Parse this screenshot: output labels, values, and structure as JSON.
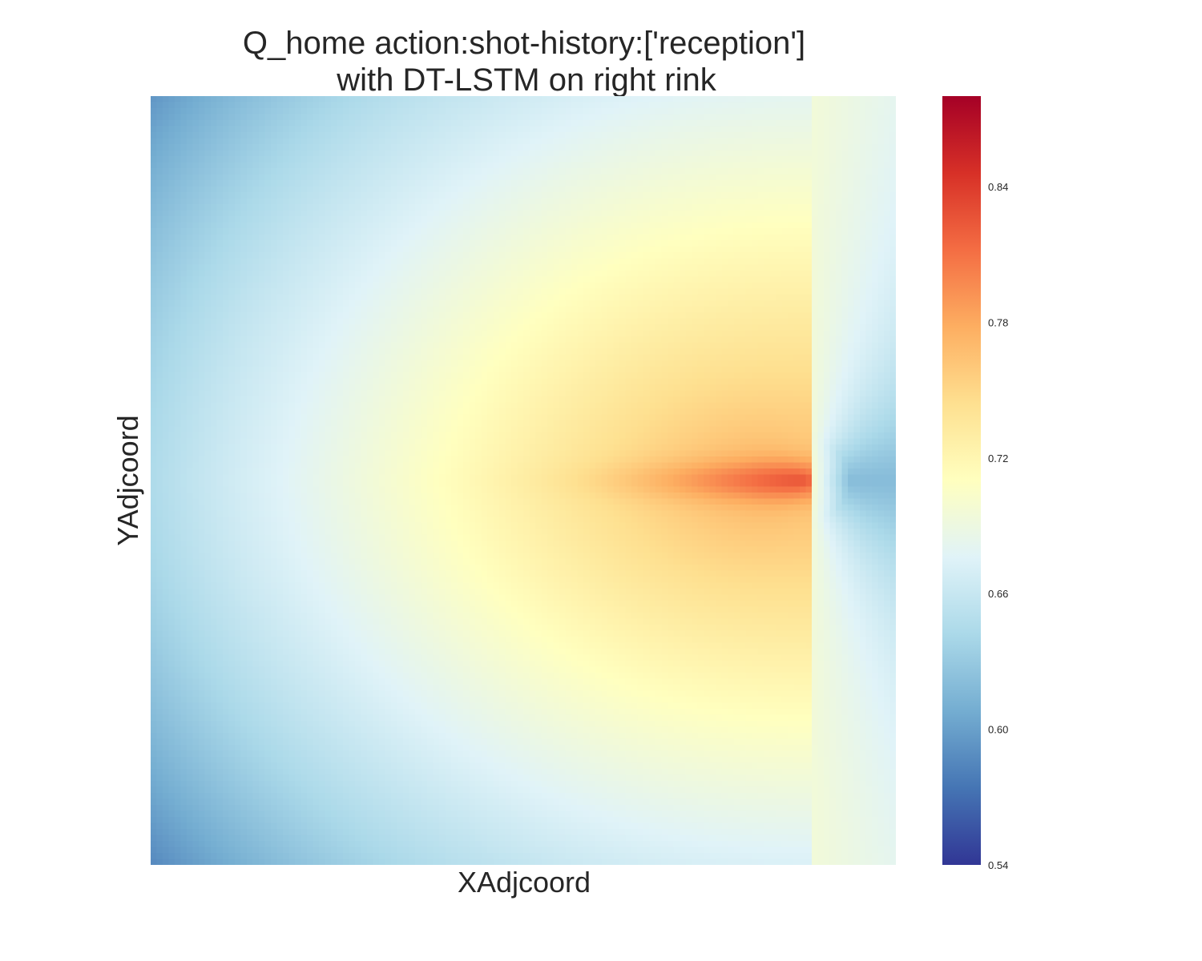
{
  "chart_data": {
    "type": "heatmap",
    "title_lines": [
      "Q_home action:shot-history:['reception']",
      "with DT-LSTM on right rink"
    ],
    "xlabel": "XAdjcoord",
    "ylabel": "YAdjcoord",
    "colormap": "RdYlBu_r",
    "colormap_stops": [
      "#313695",
      "#4575b4",
      "#74add1",
      "#abd9e9",
      "#e0f3f8",
      "#ffffbf",
      "#fee090",
      "#fdae61",
      "#f46d43",
      "#d73027",
      "#a50026"
    ],
    "value_range": [
      0.54,
      0.88
    ],
    "colorbar_ticks": [
      "0.84",
      "0.78",
      "0.72",
      "0.66",
      "0.60",
      "0.54"
    ],
    "colorbar_tick_values": [
      0.84,
      0.78,
      0.72,
      0.66,
      0.6,
      0.54
    ],
    "grid": false,
    "peak_value": 0.83,
    "behind_net_min_value": 0.62,
    "corner_values": {
      "top_left": 0.65,
      "top_right": 0.695,
      "bottom_left": 0.62,
      "bottom_right": 0.68
    },
    "left_edge_center_value": 0.685
  }
}
